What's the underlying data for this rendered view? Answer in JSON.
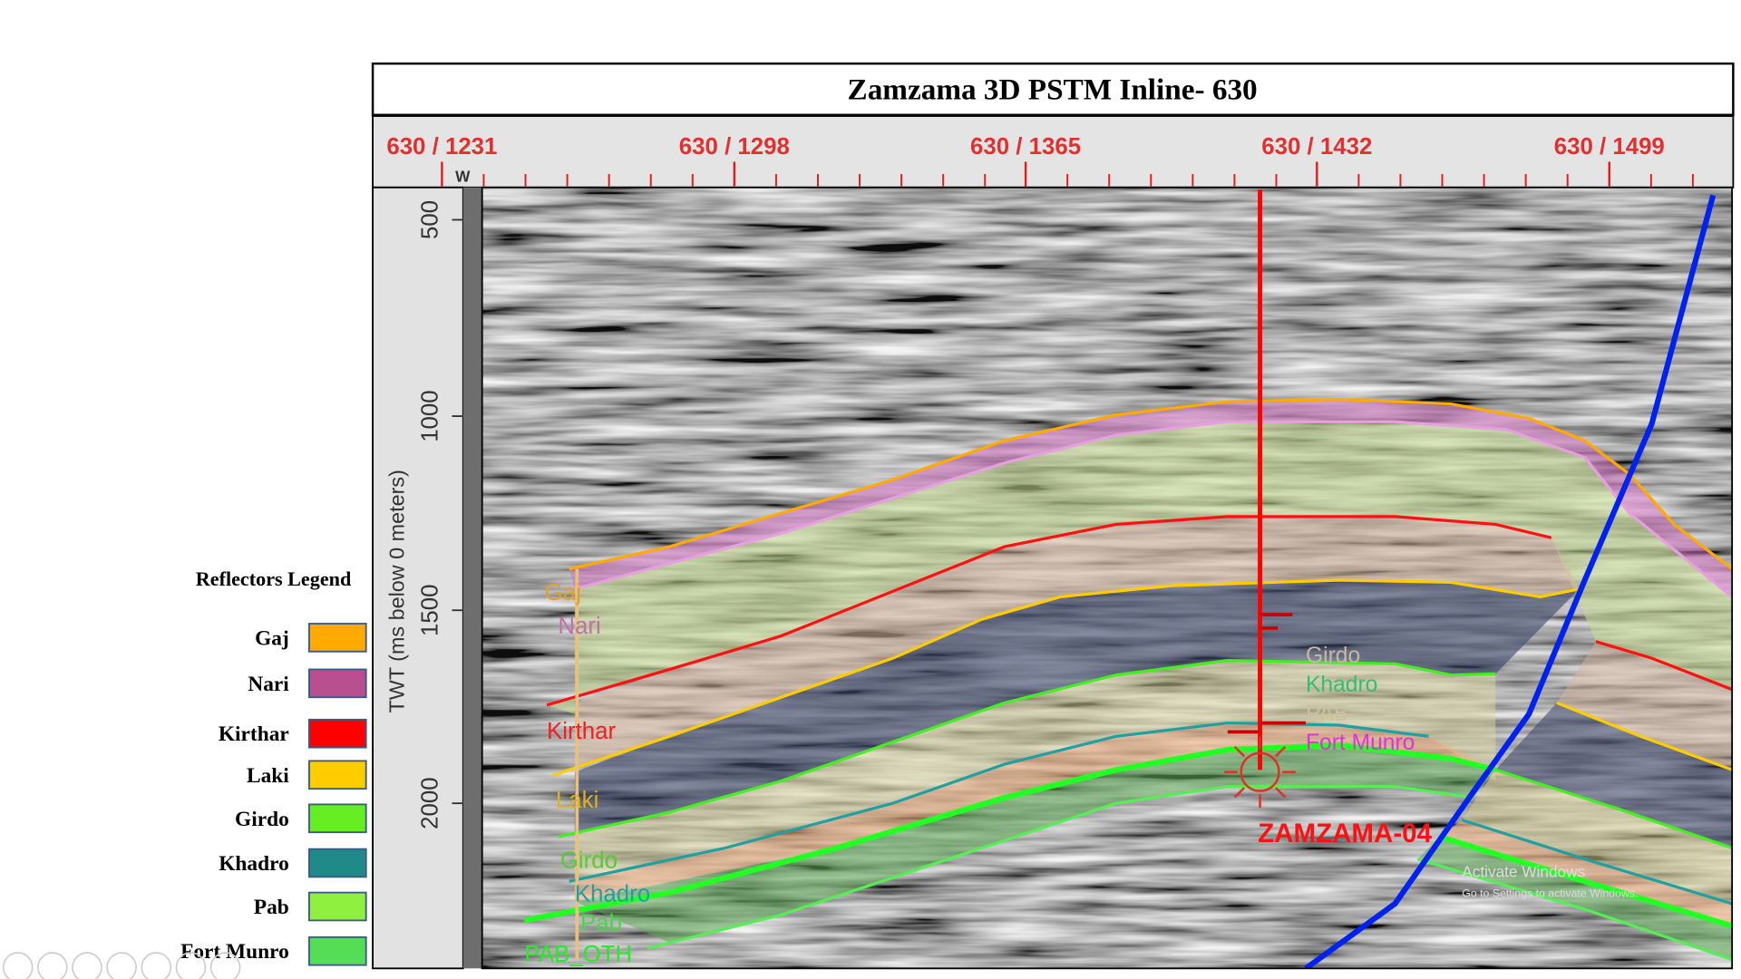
{
  "title": "Zamzama 3D PSTM Inline- 630",
  "x_axis": {
    "tick_labels": [
      "630 / 1231",
      "630 / 1298",
      "630 / 1365",
      "630 / 1432",
      "630 / 1499"
    ],
    "marker": "W"
  },
  "y_axis": {
    "label": "TWT (ms below 0 meters)",
    "tick_labels": [
      "500",
      "1000",
      "1500",
      "2000"
    ]
  },
  "legend": {
    "title": "Reflectors Legend",
    "items": [
      {
        "label": "Gaj",
        "color": "#FFAA00"
      },
      {
        "label": "Nari",
        "color": "#B8508F"
      },
      {
        "label": "Kirthar",
        "color": "#FF0000"
      },
      {
        "label": "Laki",
        "color": "#FFCC00"
      },
      {
        "label": "Girdo",
        "color": "#66EE22"
      },
      {
        "label": "Khadro",
        "color": "#208A88"
      },
      {
        "label": "Pab",
        "color": "#90F040"
      },
      {
        "label": "Fort Munro",
        "color": "#55DD55"
      }
    ]
  },
  "section_labels": {
    "left": [
      "Gaj",
      "Nari",
      "Kirthar",
      "Laki",
      "Girdo",
      "Khadro",
      "Pab",
      "PAB_OTH"
    ],
    "well": [
      "Girdo",
      "Khadro",
      "PAB",
      "Fort Munro"
    ]
  },
  "well": {
    "name": "ZAMZAMA-04",
    "color": "#FF0000"
  },
  "fault_color": "#0022EE",
  "watermark": {
    "line1": "Activate Windows",
    "line2": "Go to Settings to activate Windows."
  },
  "slideshow_controls": [
    "previous-icon",
    "next-icon",
    "pen-icon",
    "slides-icon",
    "zoom-icon",
    "subtitles-icon",
    "more-icon"
  ]
}
